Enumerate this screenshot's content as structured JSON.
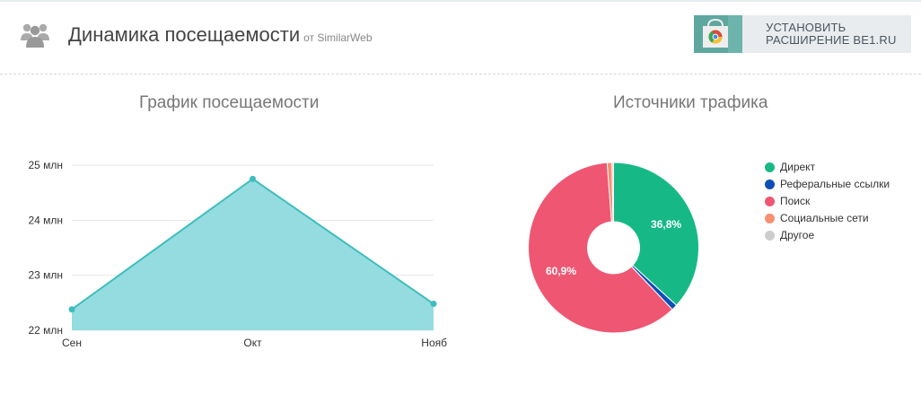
{
  "header": {
    "title": "Динамика посещаемости",
    "source": "от SimilarWeb",
    "icon": "users-group-icon",
    "extension_button": {
      "line1": "УСТАНОВИТЬ",
      "line2": "РАСШИРЕНИЕ BE1.RU",
      "icon": "chrome-web-store-icon"
    }
  },
  "visits_chart": {
    "title": "График посещаемости",
    "chart_data": {
      "type": "area",
      "categories": [
        "Сен",
        "Окт",
        "Нояб"
      ],
      "values": [
        22.38,
        24.75,
        22.48
      ],
      "ylim": [
        22,
        25
      ],
      "yticks": [
        22,
        23,
        24,
        25
      ],
      "ytick_labels": [
        "22 млн",
        "23 млн",
        "24 млн",
        "25 млн"
      ],
      "grid": true,
      "color": "#3dbdbd",
      "fill": "#95dce0"
    }
  },
  "sources_chart": {
    "title": "Источники трафика",
    "chart_data": {
      "type": "pie",
      "labels": [
        "Директ",
        "Реферальные ссылки",
        "Поиск",
        "Социальные сети",
        "Другое"
      ],
      "values": [
        36.8,
        1.1,
        60.9,
        0.9,
        0.3
      ],
      "data_labels": [
        "36,8%",
        "",
        "60,9%",
        "",
        ""
      ],
      "colors": [
        "#16b985",
        "#0d4fb5",
        "#ef5672",
        "#f79070",
        "#cccccc"
      ],
      "legend_position": "right"
    }
  }
}
